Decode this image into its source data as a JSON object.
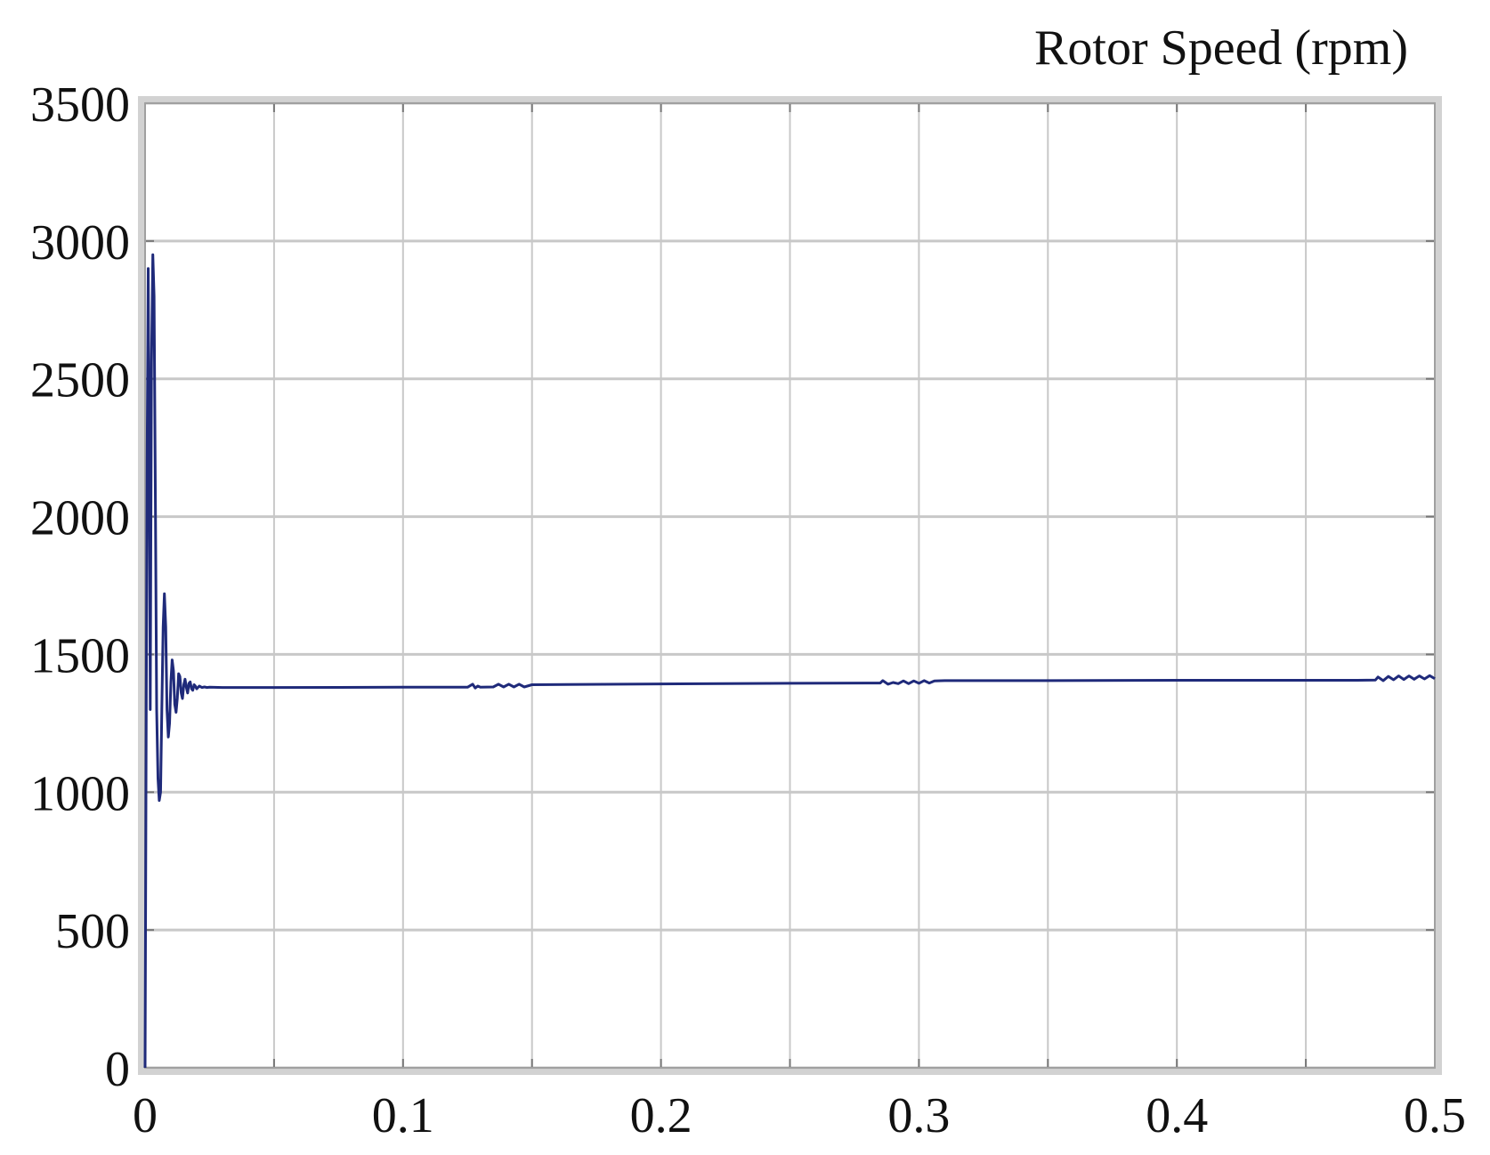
{
  "chart_data": {
    "type": "line",
    "title": "Rotor Speed (rpm)",
    "xlabel": "",
    "ylabel": "",
    "xlim": [
      0,
      0.5
    ],
    "ylim": [
      0,
      3500
    ],
    "grid": true,
    "legend": "none",
    "x_ticks": [
      0,
      0.05,
      0.1,
      0.15,
      0.2,
      0.25,
      0.3,
      0.35,
      0.4,
      0.45,
      0.5
    ],
    "x_tick_labels": [
      "0",
      "",
      "0.1",
      "",
      "0.2",
      "",
      "0.3",
      "",
      "0.4",
      "",
      "0.5"
    ],
    "y_ticks": [
      0,
      500,
      1000,
      1500,
      2000,
      2500,
      3000,
      3500
    ],
    "y_tick_labels": [
      "0",
      "500",
      "1000",
      "1500",
      "2000",
      "2500",
      "3000",
      "3500"
    ],
    "colors": {
      "line": "#1f2a7a",
      "grid": "#c8c8c8",
      "frame": "#d2d2d2",
      "plot_bg": "#ffffff"
    },
    "series": [
      {
        "x": [
          0,
          0.0004,
          0.0008,
          0.0012,
          0.0016,
          0.002,
          0.0025,
          0.003,
          0.0035,
          0.004,
          0.0045,
          0.005,
          0.0055,
          0.006,
          0.0065,
          0.007,
          0.0075,
          0.008,
          0.0085,
          0.009,
          0.0095,
          0.01,
          0.0105,
          0.011,
          0.0115,
          0.012,
          0.0125,
          0.013,
          0.0135,
          0.014,
          0.0145,
          0.015,
          0.0155,
          0.016,
          0.0165,
          0.017,
          0.0175,
          0.018,
          0.0185,
          0.019,
          0.0195,
          0.02,
          0.021,
          0.022,
          0.023,
          0.024,
          0.025,
          0.03,
          0.05,
          0.1,
          0.125,
          0.127,
          0.128,
          0.129,
          0.13,
          0.135,
          0.137,
          0.139,
          0.141,
          0.143,
          0.145,
          0.147,
          0.15,
          0.2,
          0.25,
          0.28,
          0.285,
          0.286,
          0.288,
          0.29,
          0.292,
          0.294,
          0.296,
          0.298,
          0.3,
          0.302,
          0.304,
          0.306,
          0.31,
          0.35,
          0.4,
          0.45,
          0.47,
          0.477,
          0.478,
          0.48,
          0.482,
          0.484,
          0.486,
          0.488,
          0.49,
          0.492,
          0.494,
          0.496,
          0.498,
          0.5
        ],
        "y": [
          0,
          1200,
          2200,
          2900,
          2300,
          1300,
          2560,
          2950,
          2800,
          2050,
          1300,
          1050,
          970,
          1000,
          1300,
          1600,
          1720,
          1600,
          1300,
          1200,
          1250,
          1400,
          1480,
          1440,
          1320,
          1290,
          1340,
          1430,
          1420,
          1360,
          1340,
          1390,
          1410,
          1380,
          1360,
          1395,
          1400,
          1375,
          1370,
          1390,
          1385,
          1375,
          1385,
          1380,
          1382,
          1380,
          1381,
          1380,
          1380,
          1381,
          1381,
          1392,
          1378,
          1385,
          1381,
          1382,
          1392,
          1382,
          1392,
          1382,
          1392,
          1382,
          1390,
          1393,
          1395,
          1396,
          1396,
          1405,
          1392,
          1398,
          1394,
          1404,
          1394,
          1404,
          1395,
          1405,
          1396,
          1404,
          1405,
          1405,
          1406,
          1406,
          1406,
          1407,
          1418,
          1405,
          1420,
          1408,
          1422,
          1409,
          1422,
          1410,
          1422,
          1411,
          1423,
          1412
        ]
      }
    ]
  }
}
